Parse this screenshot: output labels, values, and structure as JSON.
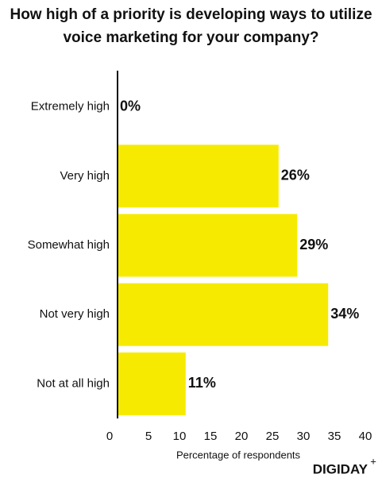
{
  "chart_data": {
    "type": "hbar",
    "title": "How high of a priority is developing ways to utilize voice marketing for your company?",
    "categories": [
      "Extremely high",
      "Very high",
      "Somewhat high",
      "Not very high",
      "Not at all high"
    ],
    "values": [
      0,
      26,
      29,
      34,
      11
    ],
    "value_labels": [
      "0%",
      "26%",
      "29%",
      "34%",
      "11%"
    ],
    "color": "#f6eb00",
    "xlabel": "Percentage of respondents",
    "xlim": [
      0,
      40
    ],
    "xticks": [
      0,
      5,
      10,
      15,
      20,
      25,
      30,
      35,
      40
    ]
  },
  "brand": "DIGIDAY",
  "brand_mark": "+"
}
